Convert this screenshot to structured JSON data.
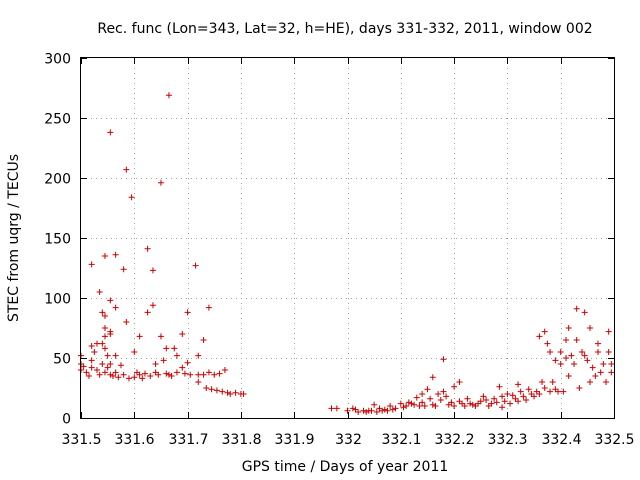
{
  "chart_data": {
    "type": "scatter",
    "title": "Rec. func (Lon=343, Lat=32, h=HE), days 331-332, 2011, window 002",
    "xlabel": "GPS time / Days of year 2011",
    "ylabel": "STEC from uqrg / TECUs",
    "xlim": [
      331.5,
      332.5
    ],
    "ylim": [
      0,
      300
    ],
    "xticks": [
      331.5,
      331.6,
      331.7,
      331.8,
      331.9,
      332,
      332.1,
      332.2,
      332.3,
      332.4,
      332.5
    ],
    "xtick_labels": [
      "331.5",
      "331.6",
      "331.7",
      "331.8",
      "331.9",
      "332",
      "332.1",
      "332.2",
      "332.3",
      "332.4",
      "332.5"
    ],
    "yticks": [
      0,
      50,
      100,
      150,
      200,
      250,
      300
    ],
    "ytick_labels": [
      "0",
      "50",
      "100",
      "150",
      "200",
      "250",
      "300"
    ],
    "grid": true,
    "marker": "plus",
    "color": "#cc0000",
    "series": [
      {
        "name": "STEC",
        "points": [
          [
            331.5,
            52
          ],
          [
            331.5,
            45
          ],
          [
            331.5,
            40
          ],
          [
            331.505,
            43
          ],
          [
            331.51,
            38
          ],
          [
            331.515,
            35
          ],
          [
            331.52,
            128
          ],
          [
            331.52,
            60
          ],
          [
            331.52,
            48
          ],
          [
            331.52,
            42
          ],
          [
            331.525,
            55
          ],
          [
            331.53,
            62
          ],
          [
            331.53,
            40
          ],
          [
            331.535,
            105
          ],
          [
            331.535,
            36
          ],
          [
            331.54,
            88
          ],
          [
            331.54,
            62
          ],
          [
            331.54,
            45
          ],
          [
            331.545,
            135
          ],
          [
            331.545,
            85
          ],
          [
            331.545,
            75
          ],
          [
            331.545,
            68
          ],
          [
            331.545,
            58
          ],
          [
            331.545,
            38
          ],
          [
            331.55,
            52
          ],
          [
            331.55,
            42
          ],
          [
            331.555,
            238
          ],
          [
            331.555,
            98
          ],
          [
            331.555,
            72
          ],
          [
            331.555,
            70
          ],
          [
            331.555,
            45
          ],
          [
            331.555,
            36
          ],
          [
            331.56,
            35
          ],
          [
            331.565,
            136
          ],
          [
            331.565,
            92
          ],
          [
            331.565,
            52
          ],
          [
            331.565,
            38
          ],
          [
            331.57,
            34
          ],
          [
            331.575,
            44
          ],
          [
            331.58,
            124
          ],
          [
            331.58,
            36
          ],
          [
            331.585,
            207
          ],
          [
            331.585,
            80
          ],
          [
            331.59,
            33
          ],
          [
            331.595,
            184
          ],
          [
            331.6,
            55
          ],
          [
            331.6,
            34
          ],
          [
            331.605,
            38
          ],
          [
            331.61,
            68
          ],
          [
            331.61,
            36
          ],
          [
            331.615,
            33
          ],
          [
            331.62,
            37
          ],
          [
            331.625,
            141
          ],
          [
            331.625,
            88
          ],
          [
            331.63,
            35
          ],
          [
            331.635,
            123
          ],
          [
            331.635,
            94
          ],
          [
            331.64,
            45
          ],
          [
            331.64,
            38
          ],
          [
            331.645,
            36
          ],
          [
            331.65,
            196
          ],
          [
            331.65,
            68
          ],
          [
            331.655,
            48
          ],
          [
            331.66,
            58
          ],
          [
            331.66,
            37
          ],
          [
            331.665,
            269
          ],
          [
            331.665,
            36
          ],
          [
            331.67,
            35
          ],
          [
            331.675,
            58
          ],
          [
            331.68,
            52
          ],
          [
            331.68,
            38
          ],
          [
            331.69,
            70
          ],
          [
            331.69,
            42
          ],
          [
            331.695,
            37
          ],
          [
            331.7,
            88
          ],
          [
            331.7,
            46
          ],
          [
            331.705,
            36
          ],
          [
            331.715,
            127
          ],
          [
            331.72,
            52
          ],
          [
            331.72,
            36
          ],
          [
            331.72,
            30
          ],
          [
            331.73,
            65
          ],
          [
            331.73,
            36
          ],
          [
            331.735,
            25
          ],
          [
            331.74,
            92
          ],
          [
            331.74,
            38
          ],
          [
            331.745,
            24
          ],
          [
            331.75,
            36
          ],
          [
            331.755,
            23
          ],
          [
            331.76,
            37
          ],
          [
            331.765,
            22
          ],
          [
            331.77,
            40
          ],
          [
            331.775,
            21
          ],
          [
            331.78,
            20
          ],
          [
            331.79,
            21
          ],
          [
            331.8,
            20
          ],
          [
            331.805,
            20
          ],
          [
            331.97,
            8
          ],
          [
            331.98,
            8
          ],
          [
            332.0,
            6
          ],
          [
            332.01,
            8
          ],
          [
            332.015,
            7
          ],
          [
            332.02,
            5
          ],
          [
            332.03,
            6
          ],
          [
            332.035,
            5
          ],
          [
            332.04,
            6
          ],
          [
            332.045,
            6
          ],
          [
            332.05,
            11
          ],
          [
            332.055,
            5
          ],
          [
            332.06,
            8
          ],
          [
            332.065,
            6
          ],
          [
            332.07,
            7
          ],
          [
            332.075,
            6
          ],
          [
            332.08,
            10
          ],
          [
            332.085,
            7
          ],
          [
            332.09,
            8
          ],
          [
            332.1,
            12
          ],
          [
            332.105,
            9
          ],
          [
            332.11,
            10
          ],
          [
            332.115,
            13
          ],
          [
            332.12,
            12
          ],
          [
            332.125,
            11
          ],
          [
            332.13,
            17
          ],
          [
            332.135,
            10
          ],
          [
            332.14,
            20
          ],
          [
            332.14,
            13
          ],
          [
            332.145,
            10
          ],
          [
            332.15,
            24
          ],
          [
            332.155,
            16
          ],
          [
            332.16,
            34
          ],
          [
            332.16,
            11
          ],
          [
            332.165,
            10
          ],
          [
            332.17,
            20
          ],
          [
            332.175,
            15
          ],
          [
            332.18,
            49
          ],
          [
            332.18,
            22
          ],
          [
            332.185,
            18
          ],
          [
            332.19,
            11
          ],
          [
            332.195,
            13
          ],
          [
            332.2,
            26
          ],
          [
            332.2,
            10
          ],
          [
            332.21,
            30
          ],
          [
            332.21,
            14
          ],
          [
            332.215,
            12
          ],
          [
            332.22,
            10
          ],
          [
            332.225,
            16
          ],
          [
            332.23,
            12
          ],
          [
            332.235,
            11
          ],
          [
            332.24,
            10
          ],
          [
            332.245,
            12
          ],
          [
            332.25,
            14
          ],
          [
            332.255,
            18
          ],
          [
            332.26,
            15
          ],
          [
            332.265,
            10
          ],
          [
            332.27,
            12
          ],
          [
            332.275,
            16
          ],
          [
            332.28,
            13
          ],
          [
            332.285,
            26
          ],
          [
            332.29,
            18
          ],
          [
            332.29,
            9
          ],
          [
            332.295,
            14
          ],
          [
            332.3,
            20
          ],
          [
            332.305,
            12
          ],
          [
            332.31,
            19
          ],
          [
            332.315,
            16
          ],
          [
            332.32,
            28
          ],
          [
            332.32,
            14
          ],
          [
            332.325,
            22
          ],
          [
            332.33,
            18
          ],
          [
            332.335,
            15
          ],
          [
            332.34,
            24
          ],
          [
            332.345,
            20
          ],
          [
            332.35,
            18
          ],
          [
            332.355,
            22
          ],
          [
            332.36,
            20
          ],
          [
            332.36,
            68
          ],
          [
            332.365,
            30
          ],
          [
            332.37,
            72
          ],
          [
            332.37,
            25
          ],
          [
            332.375,
            62
          ],
          [
            332.38,
            55
          ],
          [
            332.38,
            22
          ],
          [
            332.385,
            30
          ],
          [
            332.39,
            48
          ],
          [
            332.39,
            24
          ],
          [
            332.395,
            22
          ],
          [
            332.4,
            45
          ],
          [
            332.4,
            55
          ],
          [
            332.405,
            22
          ],
          [
            332.41,
            65
          ],
          [
            332.41,
            50
          ],
          [
            332.415,
            75
          ],
          [
            332.415,
            35
          ],
          [
            332.42,
            52
          ],
          [
            332.425,
            45
          ],
          [
            332.43,
            91
          ],
          [
            332.43,
            65
          ],
          [
            332.435,
            25
          ],
          [
            332.44,
            55
          ],
          [
            332.445,
            88
          ],
          [
            332.445,
            52
          ],
          [
            332.45,
            48
          ],
          [
            332.455,
            75
          ],
          [
            332.455,
            30
          ],
          [
            332.46,
            42
          ],
          [
            332.465,
            35
          ],
          [
            332.47,
            62
          ],
          [
            332.47,
            55
          ],
          [
            332.475,
            38
          ],
          [
            332.48,
            45
          ],
          [
            332.485,
            30
          ],
          [
            332.49,
            55
          ],
          [
            332.49,
            72
          ],
          [
            332.495,
            45
          ],
          [
            332.495,
            38
          ]
        ]
      }
    ]
  }
}
